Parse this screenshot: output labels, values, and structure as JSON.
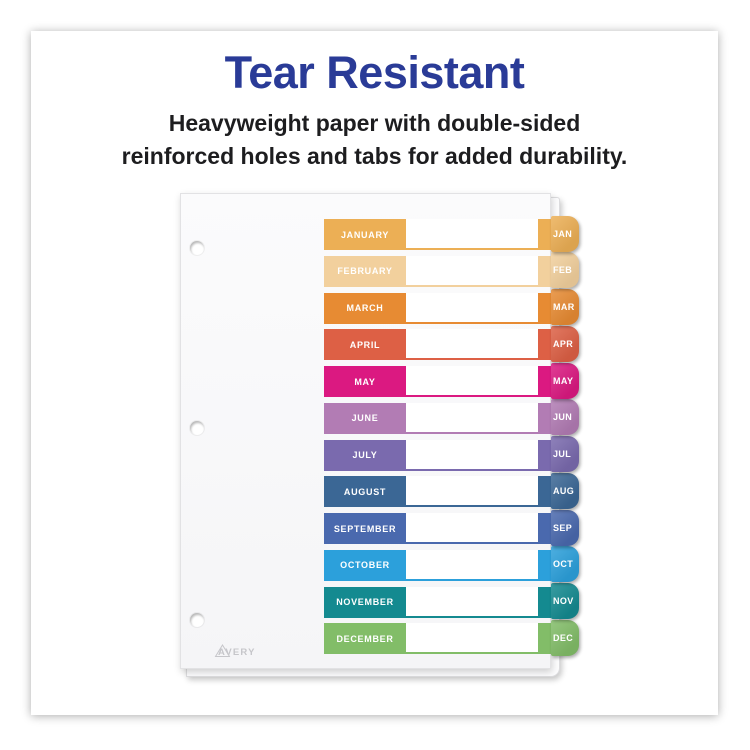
{
  "palette": {
    "heading_blue": "#2a3b97",
    "body_text": "#1d1d1f",
    "brand_gray": "#c6c6ca"
  },
  "header": {
    "title": "Tear Resistant",
    "subtitle_line1": "Heavyweight paper with double-sided",
    "subtitle_line2": "reinforced holes and tabs for added durability."
  },
  "product": {
    "brand": "AVERY",
    "tab_count": 12,
    "months": [
      {
        "name": "JANUARY",
        "abbr": "JAN",
        "color": "#ECAF55"
      },
      {
        "name": "FEBRUARY",
        "abbr": "FEB",
        "color": "#F2D09D"
      },
      {
        "name": "MARCH",
        "abbr": "MAR",
        "color": "#E78B33"
      },
      {
        "name": "APRIL",
        "abbr": "APR",
        "color": "#DD6045"
      },
      {
        "name": "MAY",
        "abbr": "MAY",
        "color": "#DB1981"
      },
      {
        "name": "JUNE",
        "abbr": "JUN",
        "color": "#B27CB4"
      },
      {
        "name": "JULY",
        "abbr": "JUL",
        "color": "#7A6AAE"
      },
      {
        "name": "AUGUST",
        "abbr": "AUG",
        "color": "#3B6795"
      },
      {
        "name": "SEPTEMBER",
        "abbr": "SEP",
        "color": "#4A69AE"
      },
      {
        "name": "OCTOBER",
        "abbr": "OCT",
        "color": "#2CA0DB"
      },
      {
        "name": "NOVEMBER",
        "abbr": "NOV",
        "color": "#148A90"
      },
      {
        "name": "DECEMBER",
        "abbr": "DEC",
        "color": "#82BD68"
      }
    ]
  }
}
